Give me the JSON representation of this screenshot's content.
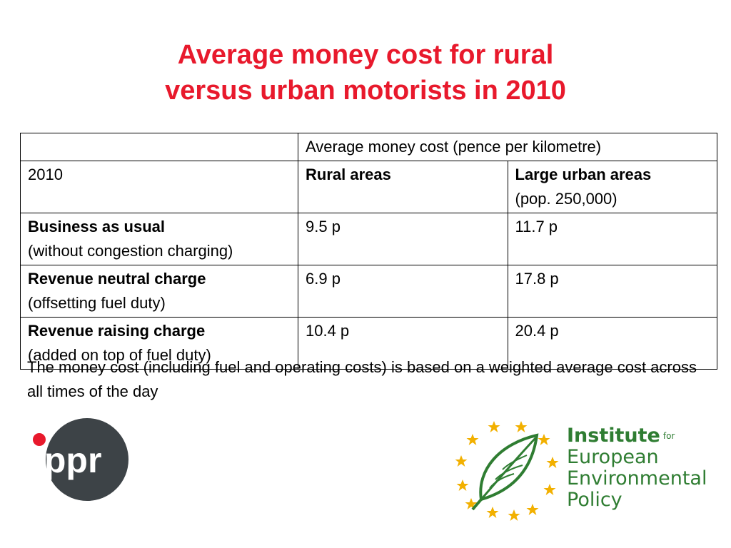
{
  "title": {
    "line1": "Average money cost for rural",
    "line2": "versus urban motorists in 2010"
  },
  "table": {
    "header": {
      "col1": "",
      "span_label": "Average money cost (pence per kilometre)"
    },
    "subheader": {
      "year": "2010",
      "rural": "Rural areas",
      "urban_bold": "Large urban areas",
      "urban_note": "(pop. 250,000)"
    },
    "rows": [
      {
        "label": "Business as usual",
        "sub": "(without congestion charging)",
        "rural": "9.5 p",
        "urban": "11.7 p"
      },
      {
        "label": "Revenue neutral charge",
        "sub": "(offsetting fuel duty)",
        "rural": "6.9 p",
        "urban": "17.8 p"
      },
      {
        "label": "Revenue raising charge",
        "sub": "(added on top of fuel duty)",
        "rural": "10.4 p",
        "urban": "20.4 p"
      }
    ]
  },
  "note": "The money cost (including fuel and operating costs) is based on a weighted average cost across all times of the day",
  "logos": {
    "ippr": {
      "text": "ippr",
      "bg": "#3d4347",
      "accent": "#e8192c"
    },
    "ieep": {
      "line1": "Institute",
      "for": "for",
      "line2": "European",
      "line3": "Environmental",
      "line4": "Policy",
      "color": "#2f7d32",
      "star_color": "#f2b000"
    }
  },
  "colors": {
    "title": "#e8192c"
  }
}
